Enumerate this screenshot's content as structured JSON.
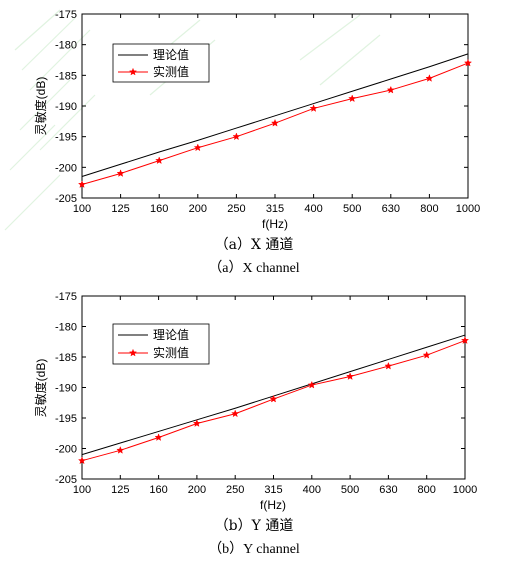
{
  "chart_data": [
    {
      "type": "line",
      "categories": [
        "100",
        "125",
        "160",
        "200",
        "250",
        "315",
        "400",
        "500",
        "630",
        "800",
        "1000"
      ],
      "xlabel": "f(Hz)",
      "ylabel": "灵敏度(dB)",
      "ylim": [
        -205,
        -175
      ],
      "yticks": [
        "-175",
        "-180",
        "-185",
        "-190",
        "-195",
        "-200",
        "-205"
      ],
      "grid": false,
      "legend_position": "top-left",
      "series": [
        {
          "name": "理论值",
          "color": "#000000",
          "marker": "none",
          "values": [
            -201.5,
            -199.5,
            -197.5,
            -195.6,
            -193.6,
            -191.6,
            -189.6,
            -187.6,
            -185.6,
            -183.6,
            -181.5
          ]
        },
        {
          "name": "实测值",
          "color": "#ff0000",
          "marker": "star",
          "values": [
            -202.8,
            -201.0,
            -198.9,
            -196.8,
            -195.0,
            -192.8,
            -190.4,
            -188.8,
            -187.4,
            -185.5,
            -183.0
          ]
        }
      ],
      "caption_cn": "（a）X 通道",
      "caption_en": "（a）X channel"
    },
    {
      "type": "line",
      "categories": [
        "100",
        "125",
        "160",
        "200",
        "250",
        "315",
        "400",
        "500",
        "630",
        "800",
        "1000"
      ],
      "xlabel": "f(Hz)",
      "ylabel": "灵敏度(dB)",
      "ylim": [
        -205,
        -175
      ],
      "yticks": [
        "-175",
        "-180",
        "-185",
        "-190",
        "-195",
        "-200",
        "-205"
      ],
      "grid": false,
      "legend_position": "top-left",
      "series": [
        {
          "name": "理论值",
          "color": "#000000",
          "marker": "none",
          "values": [
            -201.0,
            -199.1,
            -197.2,
            -195.3,
            -193.4,
            -191.4,
            -189.4,
            -187.4,
            -185.4,
            -183.4,
            -181.4
          ]
        },
        {
          "name": "实测值",
          "color": "#ff0000",
          "marker": "star",
          "values": [
            -202.0,
            -200.3,
            -198.2,
            -195.9,
            -194.3,
            -191.9,
            -189.6,
            -188.2,
            -186.5,
            -184.7,
            -182.3
          ]
        }
      ],
      "caption_cn": "（b）Y 通道",
      "caption_en": "（b）Y channel"
    }
  ]
}
